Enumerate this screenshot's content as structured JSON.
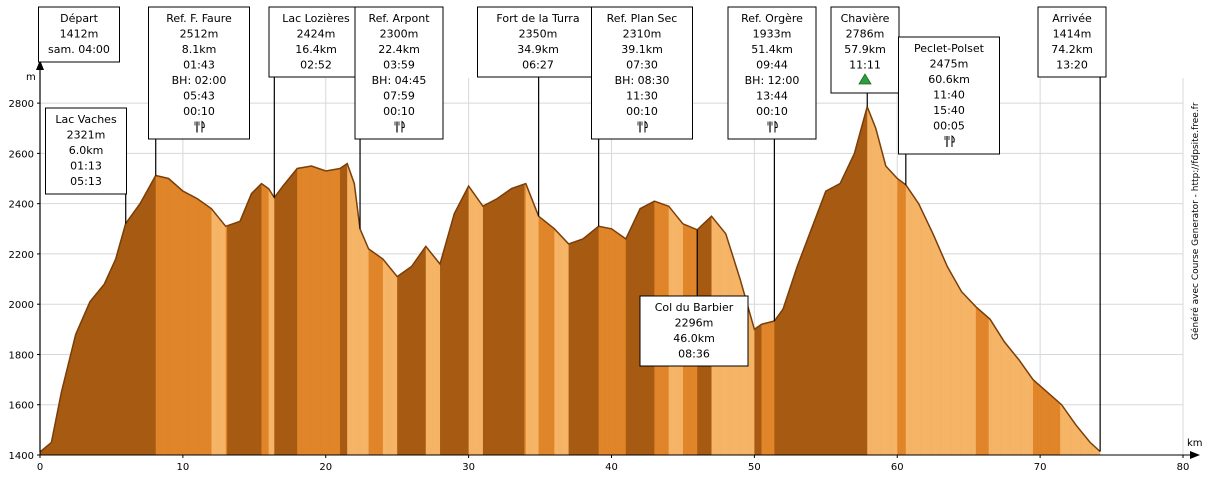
{
  "chart_data": {
    "type": "area",
    "xlabel": "km",
    "ylabel": "m",
    "xlim": [
      0,
      80
    ],
    "ylim": [
      1400,
      2900
    ],
    "x_ticks": [
      0,
      10,
      20,
      30,
      40,
      50,
      60,
      70,
      80
    ],
    "y_ticks": [
      1400,
      1600,
      1800,
      2000,
      2200,
      2400,
      2600,
      2800
    ],
    "grid": true,
    "colors": {
      "dark": "#a65a12",
      "mid": "#e0852a",
      "light": "#f5b466",
      "line": "#7a3e08",
      "summit": "#2e9e3a"
    },
    "profile": {
      "x": [
        0,
        0.8,
        1.5,
        2.5,
        3.5,
        4.5,
        5.3,
        6.0,
        7.0,
        8.1,
        9.0,
        10.0,
        11.0,
        12.0,
        13.0,
        14.0,
        14.8,
        15.5,
        16.0,
        16.4,
        17.0,
        18.0,
        19.0,
        20.0,
        21.0,
        21.5,
        22.0,
        22.4,
        23.0,
        24.0,
        25.0,
        26.0,
        27.0,
        28.0,
        29.0,
        30.0,
        31.0,
        32.0,
        33.0,
        34.0,
        34.9,
        36.0,
        37.0,
        38.0,
        39.1,
        40.0,
        41.0,
        42.0,
        43.0,
        44.0,
        45.0,
        46.0,
        47.0,
        48.0,
        49.0,
        50.0,
        50.5,
        51.4,
        52.0,
        53.0,
        54.0,
        55.0,
        56.0,
        57.0,
        57.9,
        58.5,
        59.2,
        60.0,
        60.6,
        61.5,
        62.5,
        63.5,
        64.5,
        65.5,
        66.5,
        67.5,
        68.5,
        69.5,
        70.5,
        71.5,
        72.5,
        73.5,
        74.2
      ],
      "y": [
        1412,
        1450,
        1650,
        1880,
        2010,
        2080,
        2180,
        2321,
        2400,
        2512,
        2500,
        2450,
        2420,
        2380,
        2310,
        2330,
        2440,
        2480,
        2460,
        2424,
        2470,
        2540,
        2550,
        2530,
        2540,
        2560,
        2480,
        2300,
        2220,
        2180,
        2110,
        2150,
        2230,
        2160,
        2360,
        2470,
        2390,
        2420,
        2460,
        2480,
        2350,
        2300,
        2240,
        2260,
        2310,
        2300,
        2260,
        2380,
        2410,
        2390,
        2320,
        2296,
        2350,
        2280,
        2100,
        1900,
        1920,
        1933,
        1980,
        2150,
        2300,
        2450,
        2480,
        2600,
        2786,
        2700,
        2550,
        2500,
        2475,
        2400,
        2280,
        2150,
        2050,
        1990,
        1940,
        1850,
        1780,
        1700,
        1650,
        1600,
        1520,
        1450,
        1414
      ]
    },
    "waypoints": [
      {
        "km": 0.0,
        "alt": 1412,
        "lines": [
          "Départ",
          "1412m",
          "sam. 04:00"
        ]
      },
      {
        "km": 6.0,
        "alt": 2321,
        "lines": [
          "Lac Vaches",
          "2321m",
          "6.0km",
          "01:13",
          "05:13"
        ]
      },
      {
        "km": 8.1,
        "alt": 2512,
        "lines": [
          "Ref. F. Faure",
          "2512m",
          "8.1km",
          "01:43",
          "BH: 02:00",
          "05:43",
          "00:10"
        ],
        "food": true
      },
      {
        "km": 16.4,
        "alt": 2424,
        "lines": [
          "Lac Lozières",
          "2424m",
          "16.4km",
          "02:52"
        ]
      },
      {
        "km": 22.4,
        "alt": 2300,
        "lines": [
          "Ref. Arpont",
          "2300m",
          "22.4km",
          "03:59",
          "BH: 04:45",
          "07:59",
          "00:10"
        ],
        "food": true
      },
      {
        "km": 34.9,
        "alt": 2350,
        "lines": [
          "Fort de la Turra",
          "2350m",
          "34.9km",
          "06:27"
        ]
      },
      {
        "km": 39.1,
        "alt": 2310,
        "lines": [
          "Ref. Plan Sec",
          "2310m",
          "39.1km",
          "07:30",
          "BH: 08:30",
          "11:30",
          "00:10"
        ],
        "food": true
      },
      {
        "km": 46.0,
        "alt": 2296,
        "lines": [
          "Col du Barbier",
          "2296m",
          "46.0km",
          "08:36"
        ]
      },
      {
        "km": 51.4,
        "alt": 1933,
        "lines": [
          "Ref. Orgère",
          "1933m",
          "51.4km",
          "09:44",
          "BH: 12:00",
          "13:44",
          "00:10"
        ],
        "food": true
      },
      {
        "km": 57.9,
        "alt": 2786,
        "lines": [
          "Chavière",
          "2786m",
          "57.9km",
          "11:11"
        ],
        "summit": true
      },
      {
        "km": 60.6,
        "alt": 2475,
        "lines": [
          "Peclet-Polset",
          "2475m",
          "60.6km",
          "11:40",
          "15:40",
          "00:05"
        ],
        "food": true
      },
      {
        "km": 74.2,
        "alt": 1414,
        "lines": [
          "Arrivée",
          "1414m",
          "74.2km",
          "13:20"
        ]
      }
    ],
    "side_text": "Généré avec Course Generator - http://fdpsite.free.fr"
  }
}
